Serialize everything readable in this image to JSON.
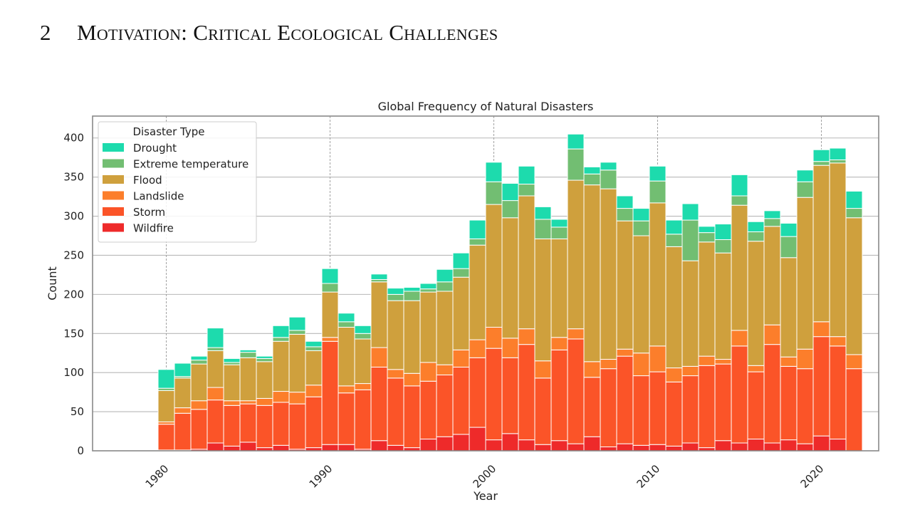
{
  "section": {
    "number": "2",
    "title": "Motivation: Critical Ecological Challenges"
  },
  "chart_data": {
    "type": "bar",
    "stacked": true,
    "title": "Global Frequency of Natural Disasters",
    "xlabel": "Year",
    "ylabel": "Count",
    "xlim": [
      1975.5,
      2023.5
    ],
    "ylim": [
      0,
      428
    ],
    "xticks": [
      1980,
      1990,
      2000,
      2010,
      2020
    ],
    "yticks": [
      0,
      50,
      100,
      150,
      200,
      250,
      300,
      350,
      400
    ],
    "grid": "horizontal lines plus dashed vertical lines at decade ticks",
    "legend": {
      "title": "Disaster Type",
      "position": "top-left"
    },
    "x": [
      1980,
      1981,
      1982,
      1983,
      1984,
      1985,
      1986,
      1987,
      1988,
      1989,
      1990,
      1991,
      1992,
      1993,
      1994,
      1995,
      1996,
      1997,
      1998,
      1999,
      2000,
      2001,
      2002,
      2003,
      2004,
      2005,
      2006,
      2007,
      2008,
      2009,
      2010,
      2011,
      2012,
      2013,
      2014,
      2015,
      2016,
      2017,
      2018,
      2019,
      2020,
      2021,
      2022
    ],
    "series": [
      {
        "name": "Wildfire",
        "color": "#ee2a2a",
        "values": [
          1,
          1,
          2,
          10,
          6,
          11,
          4,
          7,
          2,
          4,
          8,
          8,
          2,
          13,
          7,
          4,
          15,
          18,
          21,
          30,
          14,
          22,
          14,
          8,
          13,
          9,
          18,
          5,
          9,
          7,
          8,
          6,
          10,
          4,
          13,
          10,
          15,
          10,
          14,
          9,
          19,
          15,
          0
        ]
      },
      {
        "name": "Storm",
        "color": "#fb5428",
        "values": [
          33,
          47,
          51,
          55,
          52,
          49,
          54,
          55,
          58,
          65,
          132,
          66,
          76,
          94,
          86,
          79,
          74,
          79,
          86,
          89,
          117,
          97,
          122,
          85,
          116,
          134,
          76,
          100,
          112,
          89,
          93,
          82,
          86,
          105,
          98,
          124,
          86,
          126,
          94,
          96,
          127,
          119,
          105
        ]
      },
      {
        "name": "Landslide",
        "color": "#fc7e2b",
        "values": [
          3,
          7,
          11,
          16,
          6,
          4,
          9,
          14,
          15,
          15,
          5,
          9,
          8,
          25,
          11,
          16,
          24,
          13,
          22,
          23,
          27,
          25,
          20,
          22,
          16,
          13,
          20,
          12,
          9,
          29,
          33,
          18,
          12,
          12,
          6,
          20,
          8,
          25,
          12,
          25,
          19,
          12,
          18
        ]
      },
      {
        "name": "Flood",
        "color": "#cfa03d",
        "values": [
          40,
          38,
          47,
          47,
          46,
          55,
          47,
          64,
          74,
          44,
          58,
          75,
          57,
          84,
          88,
          93,
          90,
          94,
          93,
          121,
          157,
          154,
          170,
          156,
          126,
          190,
          226,
          218,
          164,
          150,
          183,
          155,
          135,
          146,
          136,
          160,
          159,
          126,
          127,
          194,
          200,
          222,
          175
        ]
      },
      {
        "name": "Extreme temperature",
        "color": "#72be72",
        "values": [
          3,
          2,
          5,
          4,
          3,
          7,
          4,
          5,
          5,
          5,
          11,
          7,
          7,
          3,
          8,
          12,
          4,
          12,
          11,
          8,
          29,
          22,
          15,
          25,
          15,
          40,
          14,
          24,
          16,
          19,
          28,
          16,
          52,
          12,
          17,
          12,
          12,
          10,
          27,
          20,
          5,
          4,
          12
        ]
      },
      {
        "name": "Drought",
        "color": "#1ddbad",
        "values": [
          24,
          17,
          5,
          25,
          5,
          3,
          3,
          15,
          17,
          7,
          19,
          11,
          10,
          7,
          8,
          5,
          7,
          16,
          20,
          24,
          25,
          22,
          23,
          16,
          10,
          19,
          9,
          10,
          16,
          16,
          19,
          18,
          21,
          8,
          20,
          27,
          13,
          10,
          17,
          15,
          15,
          15,
          22
        ]
      }
    ]
  }
}
